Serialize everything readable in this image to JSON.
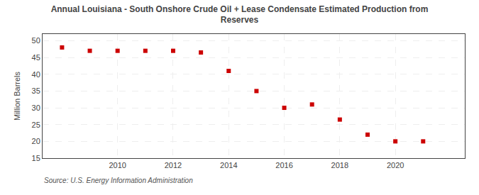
{
  "chart_data": {
    "type": "scatter",
    "title": "Annual Louisiana - South Onshore Crude Oil + Lease Condensate Estimated Production from\nReserves",
    "ylabel": "Million Barrels",
    "annotation": "Source: U.S. Energy Information Administration",
    "x": [
      2008,
      2009,
      2010,
      2011,
      2012,
      2013,
      2014,
      2015,
      2016,
      2017,
      2018,
      2019,
      2020,
      2021
    ],
    "values": [
      48.0,
      47.0,
      47.0,
      47.0,
      47.0,
      46.5,
      41.0,
      35.0,
      30.0,
      31.0,
      26.5,
      22.0,
      20.0,
      20.0
    ],
    "color": "#cc0000",
    "marker": "square",
    "xlim": [
      2007.3,
      2022.5
    ],
    "xticks": [
      2010,
      2012,
      2014,
      2016,
      2018,
      2020
    ],
    "ylim": [
      15,
      52
    ],
    "yticks": [
      15,
      20,
      25,
      30,
      35,
      40,
      45,
      50
    ],
    "grid": true
  }
}
